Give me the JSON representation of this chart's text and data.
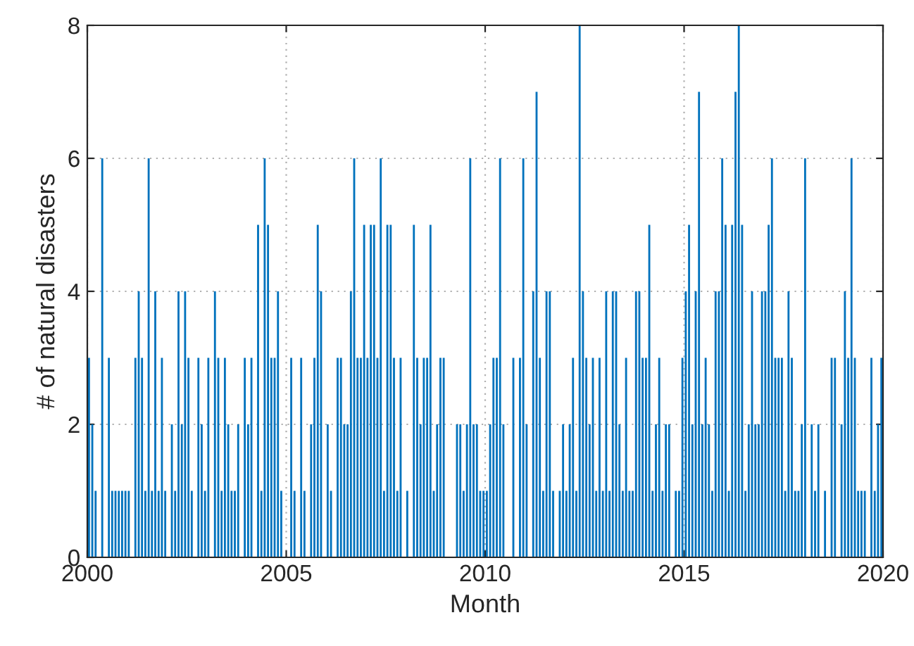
{
  "chart_data": {
    "type": "bar",
    "xlabel": "Month",
    "ylabel": "# of natural disasters",
    "color": "#0072bd",
    "x": [
      2000.042,
      2000.125,
      2000.208,
      2000.292,
      2000.375,
      2000.458,
      2000.542,
      2000.625,
      2000.708,
      2000.792,
      2000.875,
      2000.958,
      2001.042,
      2001.125,
      2001.208,
      2001.292,
      2001.375,
      2001.458,
      2001.542,
      2001.625,
      2001.708,
      2001.792,
      2001.875,
      2001.958,
      2002.042,
      2002.125,
      2002.208,
      2002.292,
      2002.375,
      2002.458,
      2002.542,
      2002.625,
      2002.708,
      2002.792,
      2002.875,
      2002.958,
      2003.042,
      2003.125,
      2003.208,
      2003.292,
      2003.375,
      2003.458,
      2003.542,
      2003.625,
      2003.708,
      2003.792,
      2003.875,
      2003.958,
      2004.042,
      2004.125,
      2004.208,
      2004.292,
      2004.375,
      2004.458,
      2004.542,
      2004.625,
      2004.708,
      2004.792,
      2004.875,
      2004.958,
      2005.042,
      2005.125,
      2005.208,
      2005.292,
      2005.375,
      2005.458,
      2005.542,
      2005.625,
      2005.708,
      2005.792,
      2005.875,
      2005.958,
      2006.042,
      2006.125,
      2006.208,
      2006.292,
      2006.375,
      2006.458,
      2006.542,
      2006.625,
      2006.708,
      2006.792,
      2006.875,
      2006.958,
      2007.042,
      2007.125,
      2007.208,
      2007.292,
      2007.375,
      2007.458,
      2007.542,
      2007.625,
      2007.708,
      2007.792,
      2007.875,
      2007.958,
      2008.042,
      2008.125,
      2008.208,
      2008.292,
      2008.375,
      2008.458,
      2008.542,
      2008.625,
      2008.708,
      2008.792,
      2008.875,
      2008.958,
      2009.042,
      2009.125,
      2009.208,
      2009.292,
      2009.375,
      2009.458,
      2009.542,
      2009.625,
      2009.708,
      2009.792,
      2009.875,
      2009.958,
      2010.042,
      2010.125,
      2010.208,
      2010.292,
      2010.375,
      2010.458,
      2010.542,
      2010.625,
      2010.708,
      2010.792,
      2010.875,
      2010.958,
      2011.042,
      2011.125,
      2011.208,
      2011.292,
      2011.375,
      2011.458,
      2011.542,
      2011.625,
      2011.708,
      2011.792,
      2011.875,
      2011.958,
      2012.042,
      2012.125,
      2012.208,
      2012.292,
      2012.375,
      2012.458,
      2012.542,
      2012.625,
      2012.708,
      2012.792,
      2012.875,
      2012.958,
      2013.042,
      2013.125,
      2013.208,
      2013.292,
      2013.375,
      2013.458,
      2013.542,
      2013.625,
      2013.708,
      2013.792,
      2013.875,
      2013.958,
      2014.042,
      2014.125,
      2014.208,
      2014.292,
      2014.375,
      2014.458,
      2014.542,
      2014.625,
      2014.708,
      2014.792,
      2014.875,
      2014.958,
      2015.042,
      2015.125,
      2015.208,
      2015.292,
      2015.375,
      2015.458,
      2015.542,
      2015.625,
      2015.708,
      2015.792,
      2015.875,
      2015.958,
      2016.042,
      2016.125,
      2016.208,
      2016.292,
      2016.375,
      2016.458,
      2016.542,
      2016.625,
      2016.708,
      2016.792,
      2016.875,
      2016.958,
      2017.042,
      2017.125,
      2017.208,
      2017.292,
      2017.375,
      2017.458,
      2017.542,
      2017.625,
      2017.708,
      2017.792,
      2017.875,
      2017.958,
      2018.042,
      2018.125,
      2018.208,
      2018.292,
      2018.375,
      2018.458,
      2018.542,
      2018.625,
      2018.708,
      2018.792,
      2018.875,
      2018.958,
      2019.042,
      2019.125,
      2019.208,
      2019.292,
      2019.375,
      2019.458,
      2019.542,
      2019.625,
      2019.708,
      2019.792,
      2019.875,
      2019.958
    ],
    "values": [
      3,
      2,
      1,
      0,
      6,
      0,
      3,
      1,
      1,
      1,
      1,
      1,
      1,
      0,
      3,
      4,
      3,
      1,
      6,
      1,
      4,
      1,
      3,
      1,
      0,
      2,
      1,
      4,
      2,
      4,
      3,
      1,
      0,
      3,
      2,
      1,
      3,
      0,
      4,
      3,
      1,
      3,
      2,
      1,
      1,
      2,
      0,
      3,
      2,
      3,
      0,
      5,
      1,
      6,
      5,
      3,
      3,
      4,
      1,
      0,
      0,
      3,
      1,
      0,
      3,
      1,
      0,
      2,
      3,
      5,
      4,
      0,
      2,
      1,
      0,
      3,
      3,
      2,
      2,
      4,
      6,
      3,
      3,
      5,
      3,
      5,
      5,
      3,
      6,
      1,
      5,
      5,
      3,
      1,
      3,
      0,
      1,
      0,
      5,
      3,
      2,
      3,
      3,
      5,
      1,
      2,
      3,
      3,
      0,
      0,
      0,
      2,
      2,
      1,
      2,
      6,
      2,
      2,
      1,
      1,
      1,
      2,
      3,
      3,
      6,
      2,
      0,
      0,
      3,
      0,
      3,
      6,
      2,
      0,
      4,
      7,
      3,
      1,
      4,
      4,
      1,
      0,
      1,
      2,
      1,
      2,
      3,
      1,
      8,
      4,
      3,
      2,
      3,
      1,
      3,
      1,
      4,
      1,
      4,
      4,
      2,
      1,
      3,
      1,
      1,
      4,
      4,
      3,
      3,
      5,
      1,
      2,
      3,
      1,
      2,
      2,
      0,
      1,
      1,
      3,
      4,
      5,
      2,
      4,
      7,
      2,
      3,
      2,
      1,
      4,
      4,
      6,
      5,
      1,
      5,
      7,
      8,
      5,
      1,
      2,
      4,
      2,
      2,
      4,
      4,
      5,
      6,
      3,
      3,
      3,
      1,
      4,
      3,
      1,
      1,
      2,
      6,
      0,
      2,
      1,
      2,
      0,
      1,
      0,
      3,
      3,
      0,
      2,
      4,
      3,
      6,
      3,
      1,
      1,
      1,
      0,
      3,
      1,
      2,
      3
    ],
    "xlim": [
      2000,
      2020
    ],
    "xticks": [
      2000,
      2005,
      2010,
      2015,
      2020
    ],
    "ylim": [
      0,
      8
    ],
    "yticks": [
      0,
      2,
      4,
      6,
      8
    ],
    "grid": true
  }
}
